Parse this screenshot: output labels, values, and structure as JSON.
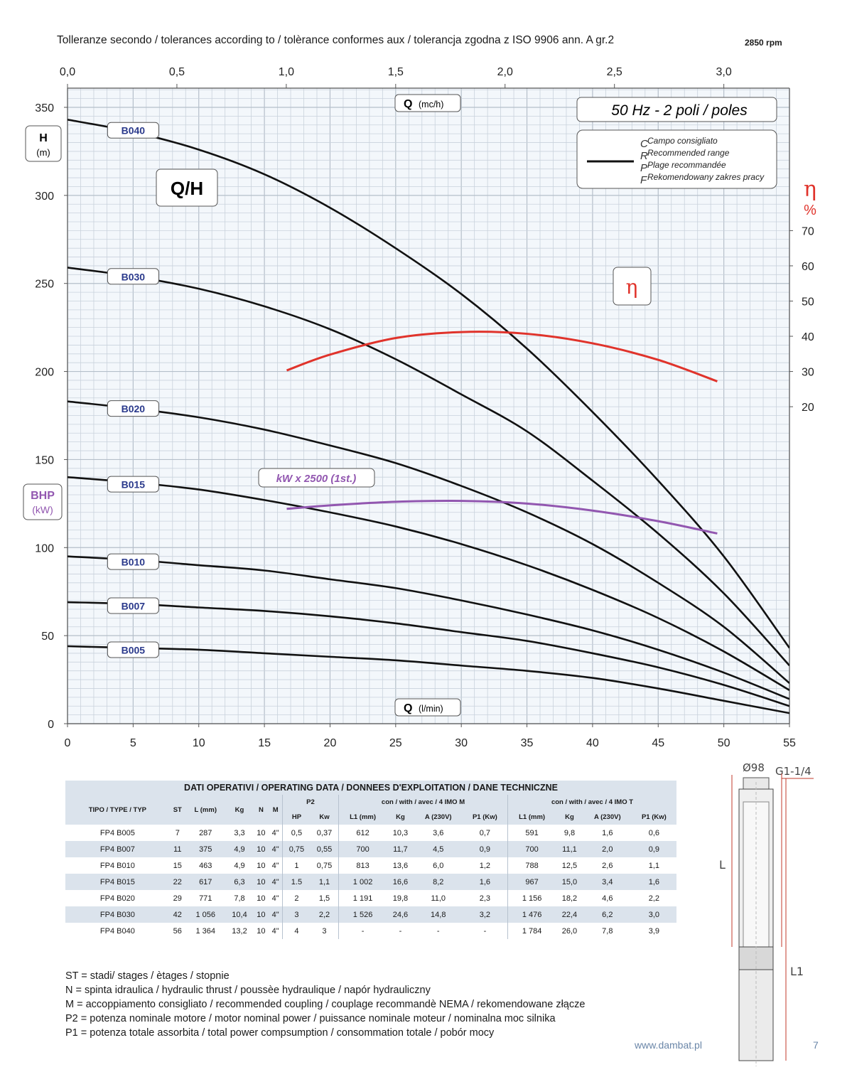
{
  "header": {
    "tolerance_text": "Tolleranze secondo / tolerances according to / tolèrance conformes aux / tolerancja zgodna z ISO 9906 ann. A gr.2",
    "rpm": "2850 rpm"
  },
  "chart_labels": {
    "q_top": "Q",
    "q_top_unit": "(mc/h)",
    "q_bottom": "Q",
    "q_bottom_unit": "(l/min)",
    "h_axis": "H",
    "h_unit": "(m)",
    "bhp": "BHP",
    "bhp_unit": "(kW)",
    "eta": "η",
    "eta_unit": "%",
    "qh_title": "Q/H",
    "frequency_box": "50 Hz - 2 poli / poles",
    "range_legend": [
      "Campo consigliato",
      "Recommended range",
      "Plage recommandée",
      "Rekomendowany zakres pracy"
    ],
    "range_letters": [
      "C",
      "R",
      "P",
      "F"
    ],
    "eta_curve_label": "η",
    "power_curve_label": "kW x 2500 (1st.)"
  },
  "chart_data": {
    "type": "line",
    "title": "Q/H",
    "xlabel": "Q (l/min)",
    "x2label": "Q (mc/h)",
    "ylabel": "H (m)",
    "y2label": "η %",
    "xlim": [
      0,
      55
    ],
    "ylim": [
      0,
      350
    ],
    "x_ticks": [
      0,
      5,
      10,
      15,
      20,
      25,
      30,
      35,
      40,
      45,
      50,
      55
    ],
    "x2_ticks": [
      "0,0",
      "0,5",
      "1,0",
      "1,5",
      "2,0",
      "2,5",
      "3,0"
    ],
    "y_ticks": [
      0,
      50,
      100,
      150,
      200,
      250,
      300,
      350
    ],
    "y2_ticks": [
      20,
      30,
      40,
      50,
      60,
      70
    ],
    "y2_axis_map": {
      "base_eta": 20,
      "base_h": 180,
      "h_per_percent": 2.0
    },
    "grid": true,
    "series": [
      {
        "name": "B040",
        "color": "#111111",
        "x": [
          0,
          5,
          10,
          15,
          20,
          25,
          30,
          35,
          40,
          45,
          50,
          55
        ],
        "y": [
          343,
          336,
          326,
          312,
          293,
          270,
          244,
          213,
          177,
          138,
          95,
          43
        ]
      },
      {
        "name": "B030",
        "color": "#111111",
        "x": [
          0,
          5,
          10,
          15,
          20,
          25,
          30,
          35,
          40,
          45,
          50,
          55
        ],
        "y": [
          259,
          254,
          247,
          237,
          224,
          207,
          187,
          166,
          138,
          108,
          74,
          33
        ]
      },
      {
        "name": "B020",
        "color": "#111111",
        "x": [
          0,
          5,
          10,
          15,
          20,
          25,
          30,
          35,
          40,
          45,
          50,
          55
        ],
        "y": [
          183,
          179,
          174,
          167,
          158,
          148,
          135,
          120,
          102,
          80,
          55,
          23
        ]
      },
      {
        "name": "B015",
        "color": "#111111",
        "x": [
          0,
          5,
          10,
          15,
          20,
          25,
          30,
          35,
          40,
          45,
          50,
          55
        ],
        "y": [
          140,
          137,
          133,
          127,
          120,
          112,
          102,
          90,
          76,
          60,
          41,
          19
        ]
      },
      {
        "name": "B010",
        "color": "#111111",
        "x": [
          0,
          5,
          10,
          15,
          20,
          25,
          30,
          35,
          40,
          45,
          50,
          55
        ],
        "y": [
          95,
          93,
          90,
          87,
          82,
          77,
          70,
          62,
          53,
          42,
          29,
          14
        ]
      },
      {
        "name": "B007",
        "color": "#111111",
        "x": [
          0,
          5,
          10,
          15,
          20,
          25,
          30,
          35,
          40,
          45,
          50,
          55
        ],
        "y": [
          69,
          68,
          66,
          64,
          61,
          57,
          52,
          47,
          40,
          32,
          22,
          10
        ]
      },
      {
        "name": "B005",
        "color": "#111111",
        "x": [
          0,
          5,
          10,
          15,
          20,
          25,
          30,
          35,
          40,
          45,
          50,
          55
        ],
        "y": [
          44,
          43,
          42,
          40,
          38,
          36,
          33,
          30,
          26,
          20,
          13,
          6
        ]
      },
      {
        "name": "η",
        "color": "#e0332b",
        "axis": "y2",
        "x": [
          16.7,
          20,
          25,
          30,
          35,
          40,
          45,
          49.5
        ],
        "y": [
          30.3,
          34.8,
          39.5,
          41.2,
          40.7,
          38.0,
          33.3,
          27.2
        ]
      },
      {
        "name": "kW x 2500 (1st.)",
        "color": "#9257b0",
        "x": [
          16.7,
          20,
          25,
          30,
          35,
          40,
          45,
          49.5
        ],
        "y": [
          122,
          124,
          126,
          126.5,
          125,
          121,
          115,
          108
        ]
      }
    ],
    "curve_labels": [
      {
        "text": "B040",
        "x": 5,
        "y": 337
      },
      {
        "text": "B030",
        "x": 5,
        "y": 254
      },
      {
        "text": "B020",
        "x": 5,
        "y": 179
      },
      {
        "text": "B015",
        "x": 5,
        "y": 136
      },
      {
        "text": "B010",
        "x": 5,
        "y": 92
      },
      {
        "text": "B007",
        "x": 5,
        "y": 67
      },
      {
        "text": "B005",
        "x": 5,
        "y": 42
      }
    ]
  },
  "operating_table": {
    "caption": "DATI OPERATIVI / OPERATING DATA / DONNEES D'EXPLOITATION / DANE TECHNICZNE",
    "head1": [
      "TIPO / TYPE / TYP",
      "ST",
      "L (mm)",
      "Kg",
      "N",
      "M",
      "P2",
      "con / with / avec / 4 IMO M",
      "con / with / avec / 4 IMO T"
    ],
    "head2": [
      "HP",
      "Kw",
      "L1 (mm)",
      "Kg",
      "A (230V)",
      "P1 (Kw)",
      "L1 (mm)",
      "Kg",
      "A (230V)",
      "P1 (Kw)"
    ],
    "rows": [
      [
        "FP4 B005",
        "7",
        "287",
        "3,3",
        "10",
        "4\"",
        "0,5",
        "0,37",
        "612",
        "10,3",
        "3,6",
        "0,7",
        "591",
        "9,8",
        "1,6",
        "0,6"
      ],
      [
        "FP4 B007",
        "11",
        "375",
        "4,9",
        "10",
        "4\"",
        "0,75",
        "0,55",
        "700",
        "11,7",
        "4,5",
        "0,9",
        "700",
        "11,1",
        "2,0",
        "0,9"
      ],
      [
        "FP4 B010",
        "15",
        "463",
        "4,9",
        "10",
        "4\"",
        "1",
        "0,75",
        "813",
        "13,6",
        "6,0",
        "1,2",
        "788",
        "12,5",
        "2,6",
        "1,1"
      ],
      [
        "FP4 B015",
        "22",
        "617",
        "6,3",
        "10",
        "4\"",
        "1.5",
        "1,1",
        "1 002",
        "16,6",
        "8,2",
        "1,6",
        "967",
        "15,0",
        "3,4",
        "1,6"
      ],
      [
        "FP4 B020",
        "29",
        "771",
        "7,8",
        "10",
        "4\"",
        "2",
        "1,5",
        "1 191",
        "19,8",
        "11,0",
        "2,3",
        "1 156",
        "18,2",
        "4,6",
        "2,2"
      ],
      [
        "FP4 B030",
        "42",
        "1 056",
        "10,4",
        "10",
        "4\"",
        "3",
        "2,2",
        "1 526",
        "24,6",
        "14,8",
        "3,2",
        "1 476",
        "22,4",
        "6,2",
        "3,0"
      ],
      [
        "FP4 B040",
        "56",
        "1 364",
        "13,2",
        "10",
        "4\"",
        "4",
        "3",
        "-",
        "-",
        "-",
        "-",
        "1 784",
        "26,0",
        "7,8",
        "3,9"
      ]
    ]
  },
  "notes": [
    "ST = stadi/ stages / ètages / stopnie",
    "N  = spinta idraulica / hydraulic thrust / poussèe hydraulique / napór hydrauliczny",
    "M  = accoppiamento consigliato / recommended coupling / couplage recommandè     NEMA / rekomendowane złącze",
    "P2 = potenza nominale motore / motor nominal power / puissance nominale moteur / nominalna moc silnika",
    "P1 = potenza totale assorbita / total power compsumption / consommation totale / pobór mocy"
  ],
  "pump_drawing": {
    "diameter": "Ø98",
    "thread": "G1-1/4",
    "label_l": "L",
    "label_l1": "L1"
  },
  "footer": {
    "website": "www.dambat.pl",
    "page_number": "7"
  }
}
